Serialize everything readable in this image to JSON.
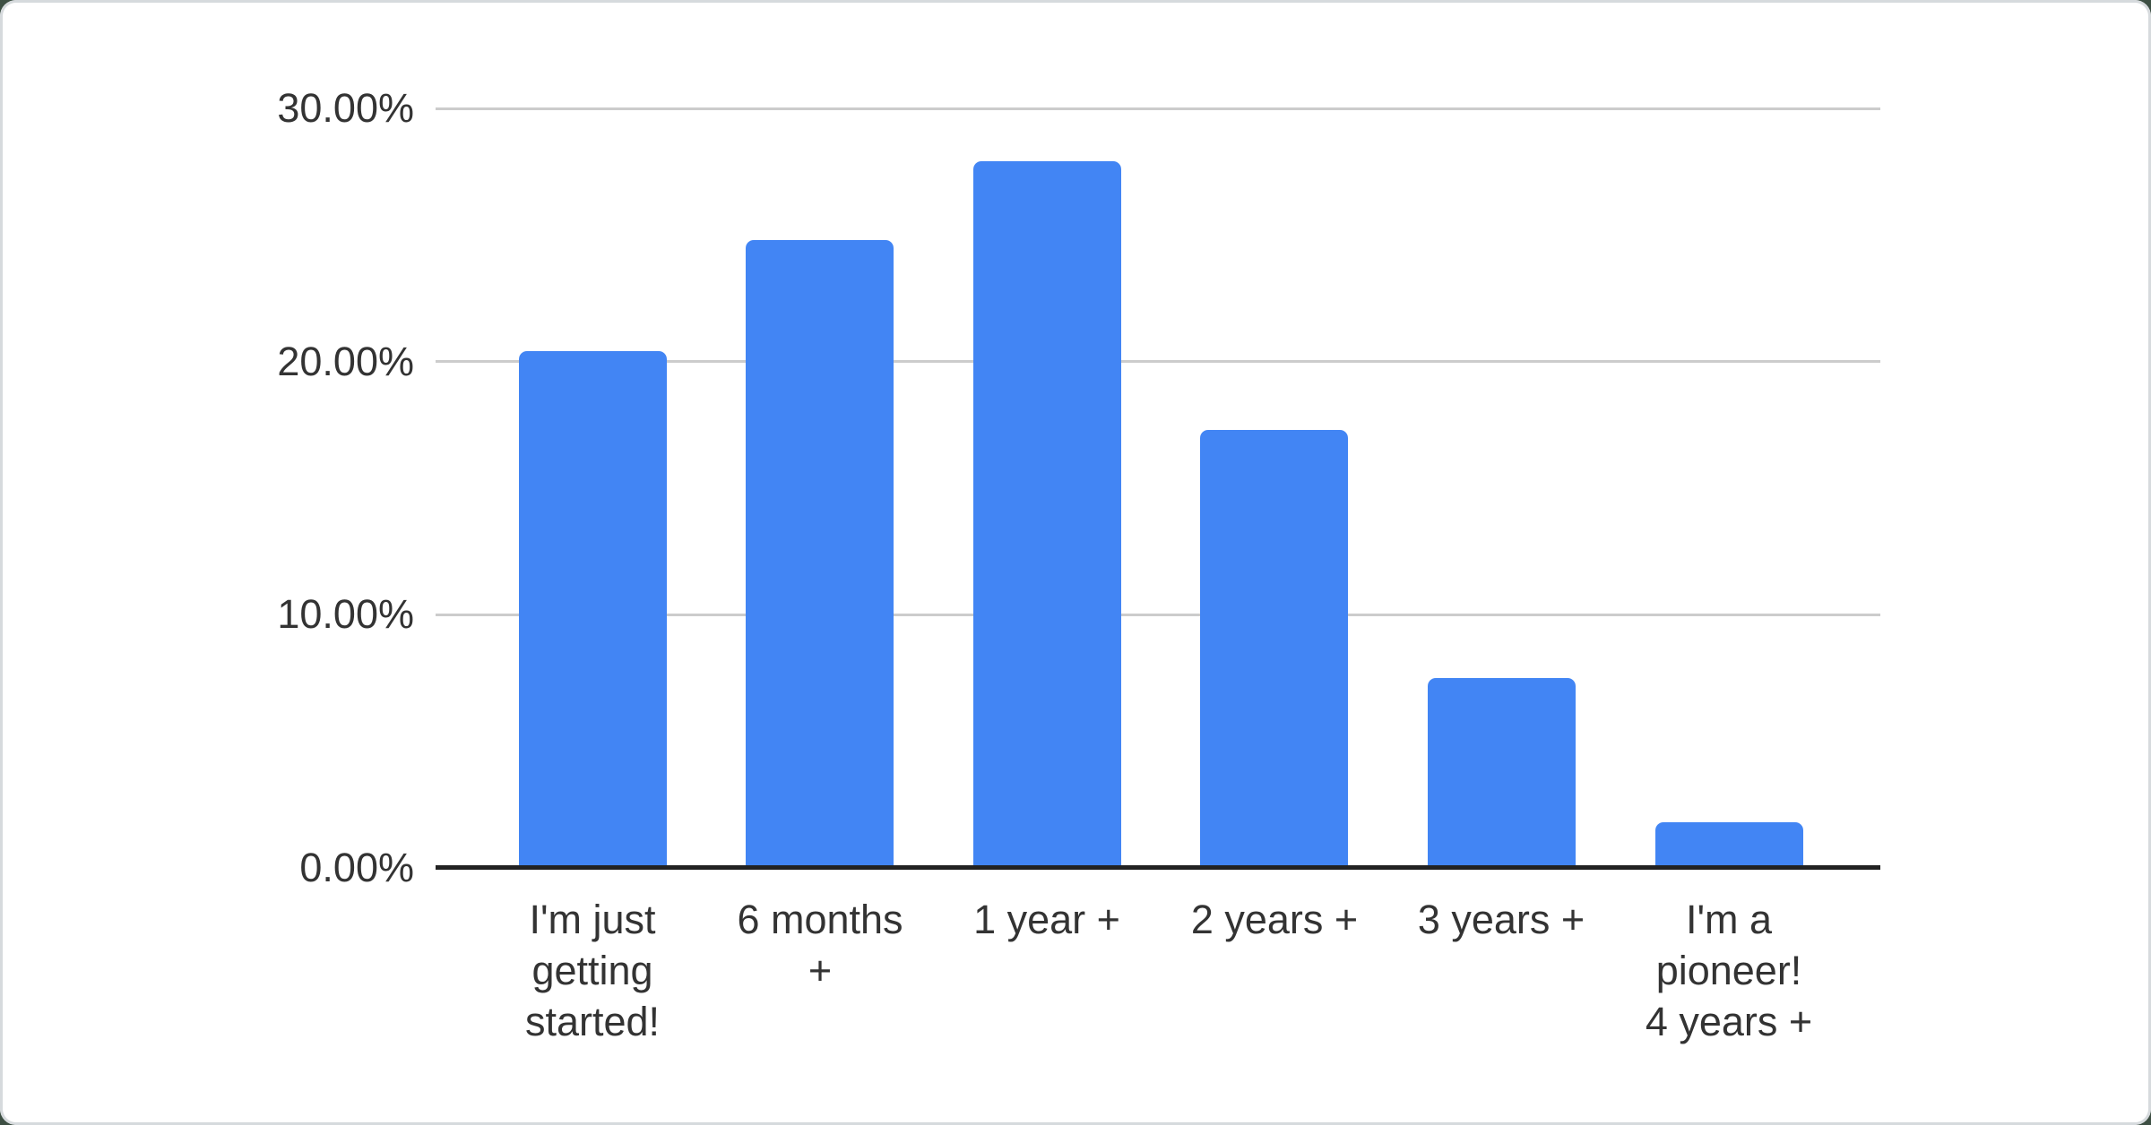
{
  "chart_data": {
    "type": "bar",
    "title": "",
    "xlabel": "",
    "ylabel": "",
    "categories": [
      "I'm just getting started!",
      "6 months +",
      "1 year +",
      "2 years +",
      "3 years +",
      "I'm a pioneer! 4 years +"
    ],
    "values": [
      20.4,
      24.8,
      27.9,
      17.3,
      7.5,
      1.8
    ],
    "value_unit": "percent",
    "ylim": [
      0,
      30
    ],
    "grid": true,
    "legend": "none",
    "yticks": [
      {
        "value": 0,
        "label": "0.00%"
      },
      {
        "value": 10,
        "label": "10.00%"
      },
      {
        "value": 20,
        "label": "20.00%"
      },
      {
        "value": 30,
        "label": "30.00%"
      }
    ],
    "xtick_display": [
      "I'm just\ngetting\nstarted!",
      "6 months\n+",
      "1 year +",
      "2 years +",
      "3 years +",
      "I'm a\npioneer!\n4 years +"
    ],
    "colors": {
      "bar": "#4285f4",
      "gridline": "#cccccc",
      "axis_line": "#222222",
      "label_text": "#333333",
      "card_background": "#ffffff",
      "frame_edge": "#d6dadd"
    }
  }
}
